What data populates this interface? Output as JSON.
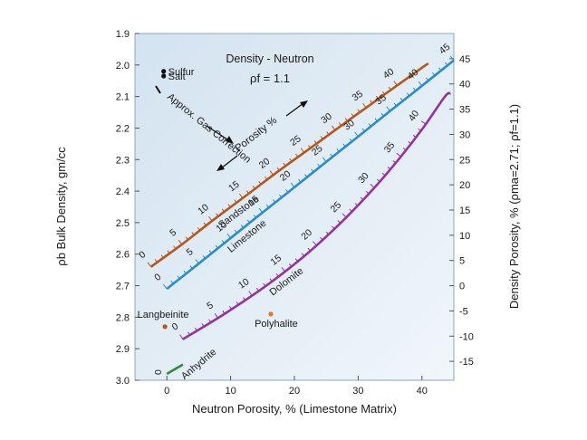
{
  "chart_data": {
    "type": "line",
    "title": "Density - Neutron",
    "subtitle": "ρf = 1.1",
    "xlabel": "Neutron Porosity, % (Limestone Matrix)",
    "ylabel": "ρb Bulk Density, gm/cc",
    "y2label": "Density Porosity, % (ρma=2.71; ρf=1.1)",
    "xlim": [
      -5,
      45
    ],
    "ylim": [
      1.9,
      3.0
    ],
    "y_inverted": true,
    "y2lim": [
      50,
      -18.75
    ],
    "x_ticks": [
      "0",
      "10",
      "20",
      "30",
      "40"
    ],
    "x_tick_values": [
      0,
      10,
      20,
      30,
      40
    ],
    "y_ticks": [
      "1.9",
      "2.0",
      "2.1",
      "2.2",
      "2.3",
      "2.4",
      "2.5",
      "2.6",
      "2.7",
      "2.8",
      "2.9",
      "3.0"
    ],
    "y_tick_values": [
      1.9,
      2.0,
      2.1,
      2.2,
      2.3,
      2.4,
      2.5,
      2.6,
      2.7,
      2.8,
      2.9,
      3.0
    ],
    "y2_ticks": [
      "45",
      "40",
      "35",
      "30",
      "25",
      "20",
      "15",
      "10",
      "5",
      "0",
      "-5",
      "-10",
      "-15"
    ],
    "y2_tick_values": [
      45,
      40,
      35,
      30,
      25,
      20,
      15,
      10,
      5,
      0,
      -5,
      -10,
      -15
    ],
    "background_color": "#dde9f3",
    "series": [
      {
        "name": "Sandstone",
        "color": "#b5561d",
        "x": [
          -2.5,
          2.1,
          7.2,
          12.5,
          17.8,
          23.3,
          28.8,
          34.3,
          39.9,
          41.0
        ],
        "y": [
          2.64,
          2.573,
          2.493,
          2.413,
          2.332,
          2.252,
          2.171,
          2.091,
          2.01,
          1.995
        ],
        "porosity_ticks": [
          "0",
          "5",
          "10",
          "15",
          "20",
          "25",
          "30",
          "35",
          "40"
        ]
      },
      {
        "name": "Limestone",
        "color": "#2a8cc8",
        "x": [
          0,
          5,
          10,
          15,
          20,
          25,
          30,
          35,
          40,
          45
        ],
        "y": [
          2.71,
          2.63,
          2.549,
          2.468,
          2.388,
          2.307,
          2.227,
          2.146,
          2.066,
          1.985
        ],
        "porosity_ticks": [
          "0",
          "5",
          "10",
          "15",
          "20",
          "25",
          "30",
          "35",
          "40",
          "45"
        ]
      },
      {
        "name": "Dolomite",
        "color": "#93339e",
        "x": [
          2.5,
          9.0,
          16.0,
          22.2,
          27.5,
          32.2,
          36.4,
          40.2,
          43.6,
          44.5
        ],
        "y": [
          2.87,
          2.79,
          2.694,
          2.595,
          2.496,
          2.397,
          2.298,
          2.199,
          2.1,
          2.09
        ],
        "porosity_ticks": [
          "0",
          "5",
          "10",
          "15",
          "20",
          "25",
          "30",
          "35",
          "40"
        ]
      }
    ],
    "points": [
      {
        "name": "Sulfur",
        "x": -0.5,
        "y": 2.02,
        "color": "#111111"
      },
      {
        "name": "Salt",
        "x": -0.5,
        "y": 2.035,
        "color": "#111111"
      },
      {
        "name": "Langbeinite",
        "x": -0.3,
        "y": 2.83,
        "color": "#b5561d"
      },
      {
        "name": "Polyhalite",
        "x": 16.3,
        "y": 2.79,
        "color": "#e07a2a"
      }
    ],
    "anhydrite": {
      "name": "Anhydrite",
      "label": "0",
      "x": [
        0,
        2.5
      ],
      "y": [
        2.98,
        2.95
      ],
      "color": "#2f8a3a"
    },
    "annotations": {
      "gas_correction": "Approx. Gas Correction",
      "porosity_arrow": "Porosity %"
    }
  }
}
